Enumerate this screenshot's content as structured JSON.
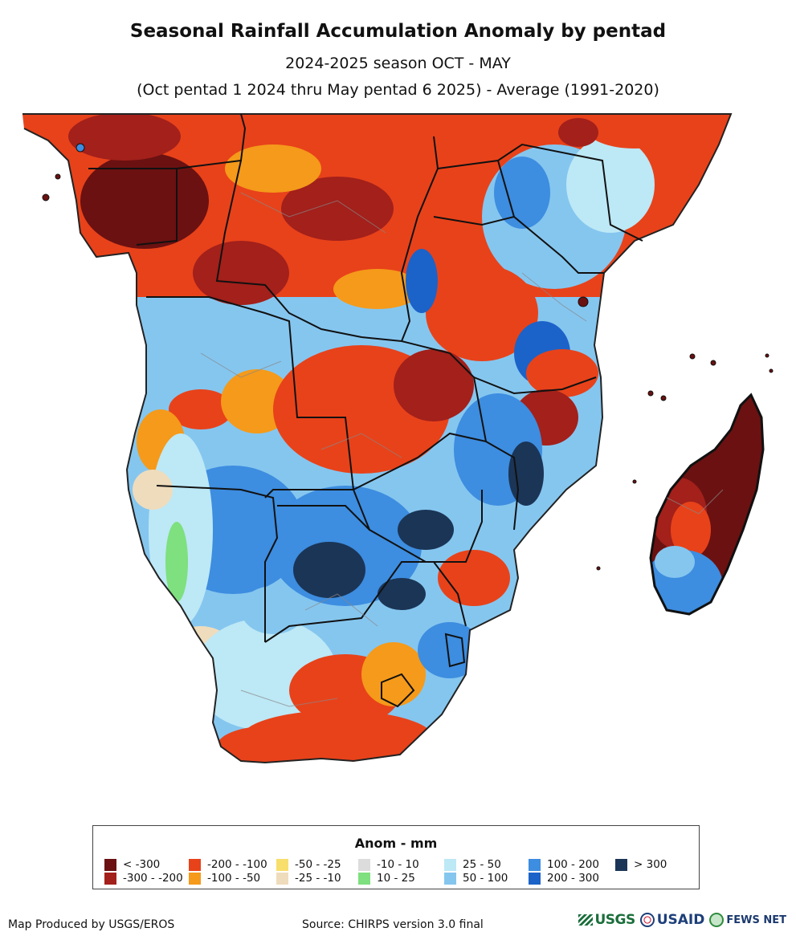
{
  "title": "Seasonal Rainfall Accumulation Anomaly by pentad",
  "subtitle_1": "2024-2025 season OCT - MAY",
  "subtitle_2": "(Oct pentad 1 2024 thru May pentad 6 2025) - Average (1991-2020)",
  "legend": {
    "title": "Anom - mm",
    "items": [
      {
        "label": "< -300",
        "color": "#6b1111"
      },
      {
        "label": "-300 - -200",
        "color": "#a3201b"
      },
      {
        "label": "-200 - -100",
        "color": "#e8421a"
      },
      {
        "label": "-100 - -50",
        "color": "#f59a1a"
      },
      {
        "label": "-50 - -25",
        "color": "#f8de6b"
      },
      {
        "label": "-25 - -10",
        "color": "#efdcbc"
      },
      {
        "label": "-10 - 10",
        "color": "#dcdcdc"
      },
      {
        "label": "10 - 25",
        "color": "#7ee07e"
      },
      {
        "label": "25 - 50",
        "color": "#bde8f6"
      },
      {
        "label": "50 - 100",
        "color": "#85c6ef"
      },
      {
        "label": "100 - 200",
        "color": "#3d8de0"
      },
      {
        "label": "200 - 300",
        "color": "#1b63c9"
      },
      {
        "label": "> 300",
        "color": "#1b3556"
      }
    ]
  },
  "footer_left": "Map Produced by USGS/EROS",
  "footer_center": "Source: CHIRPS version 3.0 final",
  "logos": {
    "usgs": "USGS",
    "usaid": "USAID",
    "fews": "FEWS NET"
  }
}
